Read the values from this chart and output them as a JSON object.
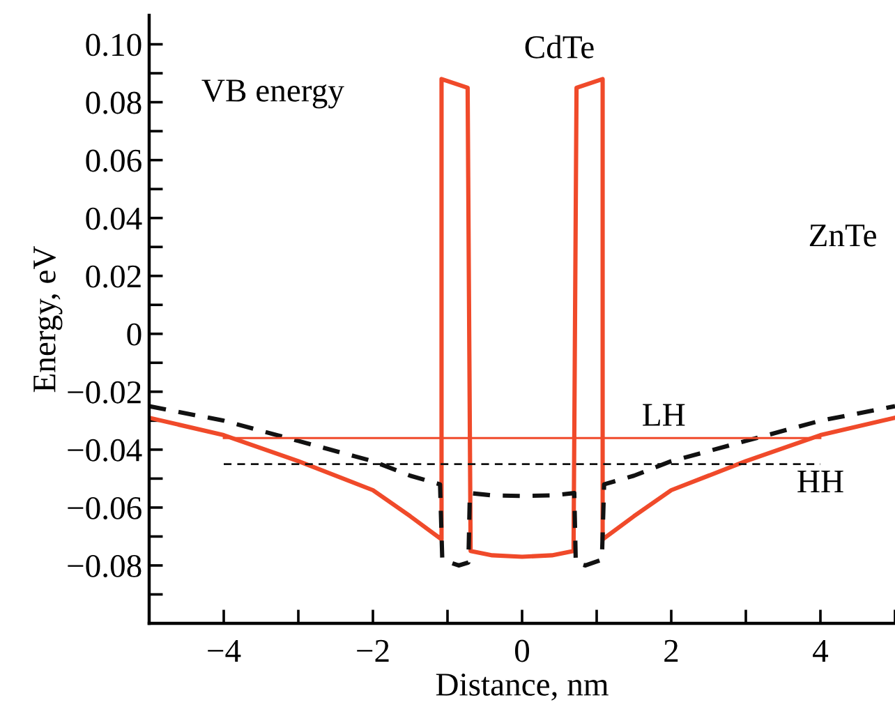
{
  "chart_data": {
    "type": "line",
    "xlabel": "Distance, nm",
    "ylabel": "Energy, eV",
    "annotations": [
      "VB energy",
      "CdTe",
      "ZnTe"
    ],
    "series": [
      {
        "color": "#f04a2a",
        "line_style": "solid",
        "x": [
          -5,
          -4,
          -3,
          -2,
          -1.5,
          -1.08,
          -1.08,
          -0.73,
          -0.69,
          -0.4,
          0,
          0.4,
          0.69,
          0.73,
          1.08,
          1.08,
          1.5,
          2,
          3,
          4,
          5
        ],
        "values": [
          -0.029,
          -0.035,
          -0.044,
          -0.054,
          -0.063,
          -0.071,
          0.088,
          0.085,
          -0.075,
          -0.0765,
          -0.077,
          -0.0765,
          -0.075,
          0.085,
          0.088,
          -0.071,
          -0.063,
          -0.054,
          -0.044,
          -0.035,
          -0.029
        ]
      },
      {
        "color": "#111111",
        "line_style": "dashed",
        "x": [
          -5,
          -4,
          -3,
          -2,
          -1.5,
          -1.1,
          -1.07,
          -0.85,
          -0.72,
          -0.7,
          -0.4,
          0,
          0.4,
          0.7,
          0.72,
          0.85,
          1.07,
          1.1,
          1.5,
          2,
          3,
          4,
          5
        ],
        "values": [
          -0.025,
          -0.03,
          -0.037,
          -0.044,
          -0.049,
          -0.052,
          -0.078,
          -0.08,
          -0.079,
          -0.055,
          -0.0558,
          -0.056,
          -0.0558,
          -0.055,
          -0.079,
          -0.08,
          -0.078,
          -0.052,
          -0.049,
          -0.044,
          -0.037,
          -0.03,
          -0.025
        ]
      },
      {
        "name": "LH",
        "color": "#f04a2a",
        "line_style": "solid",
        "x": [
          -4,
          4
        ],
        "values": [
          -0.036,
          -0.036
        ]
      },
      {
        "name": "HH",
        "color": "#111111",
        "line_style": "dashed",
        "x": [
          -4,
          4
        ],
        "values": [
          -0.045,
          -0.045
        ]
      }
    ],
    "xlim": [
      -5,
      5
    ],
    "xticks": [
      {
        "value": -5,
        "label": null
      },
      {
        "value": -4,
        "label": "−4"
      },
      {
        "value": -3,
        "label": null
      },
      {
        "value": -2,
        "label": "−2"
      },
      {
        "value": -1,
        "label": null
      },
      0,
      {
        "value": 1,
        "label": null
      },
      2,
      {
        "value": 3,
        "label": null
      },
      4,
      {
        "value": 5,
        "label": null
      }
    ],
    "ylim": [
      -0.1,
      0.11
    ],
    "yticks": [
      {
        "value": -0.1,
        "label": null
      },
      {
        "value": -0.09,
        "label": null
      },
      {
        "value": -0.08,
        "label": "−0.08"
      },
      {
        "value": -0.07,
        "label": null
      },
      {
        "value": -0.06,
        "label": "−0.06"
      },
      {
        "value": -0.05,
        "label": null
      },
      {
        "value": -0.04,
        "label": "−0.04"
      },
      {
        "value": -0.03,
        "label": null
      },
      {
        "value": -0.02,
        "label": "−0.02"
      },
      {
        "value": -0.01,
        "label": null
      },
      0,
      {
        "value": 0.01,
        "label": null
      },
      {
        "value": 0.02,
        "label": "0.02"
      },
      {
        "value": 0.03,
        "label": null
      },
      {
        "value": 0.04,
        "label": "0.04"
      },
      {
        "value": 0.05,
        "label": null
      },
      {
        "value": 0.06,
        "label": "0.06"
      },
      {
        "value": 0.07,
        "label": null
      },
      {
        "value": 0.08,
        "label": "0.08"
      },
      {
        "value": 0.09,
        "label": null
      },
      {
        "value": 0.1,
        "label": "0.10"
      }
    ],
    "grid": false,
    "legend": false
  }
}
